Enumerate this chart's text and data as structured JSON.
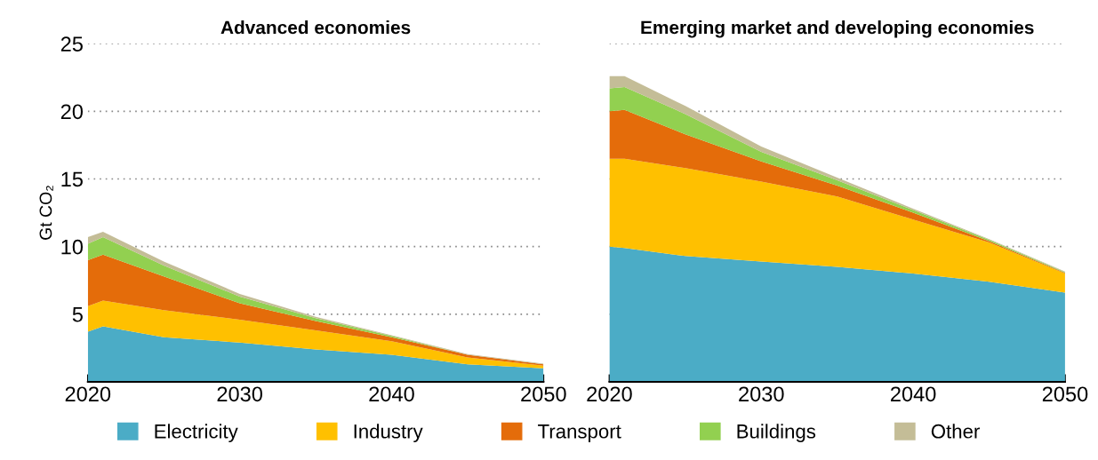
{
  "chart_data": [
    {
      "type": "area",
      "stacked": true,
      "title": "Advanced economies",
      "ylabel": "Gt CO₂",
      "x": [
        2020,
        2021,
        2025,
        2030,
        2035,
        2040,
        2045,
        2050
      ],
      "xlim": [
        2020,
        2050
      ],
      "xticks": [
        2020,
        2030,
        2040,
        2050
      ],
      "ylim": [
        0,
        25
      ],
      "yticks": [
        5,
        10,
        15,
        20,
        25
      ],
      "grid": "y",
      "legend": "bottom",
      "series": [
        {
          "name": "Electricity",
          "color": "#4bacc6",
          "values": [
            3.7,
            4.1,
            3.3,
            2.9,
            2.4,
            2.0,
            1.3,
            1.0
          ]
        },
        {
          "name": "Industry",
          "color": "#ffc000",
          "values": [
            1.9,
            1.9,
            2.0,
            1.7,
            1.4,
            1.0,
            0.5,
            0.2
          ]
        },
        {
          "name": "Transport",
          "color": "#e46c0a",
          "values": [
            3.4,
            3.4,
            2.5,
            1.2,
            0.7,
            0.3,
            0.2,
            0.1
          ]
        },
        {
          "name": "Buildings",
          "color": "#92d050",
          "values": [
            1.2,
            1.3,
            0.8,
            0.5,
            0.2,
            0.1,
            0.0,
            0.0
          ]
        },
        {
          "name": "Other",
          "color": "#c4bd97",
          "values": [
            0.5,
            0.4,
            0.3,
            0.2,
            0.1,
            0.05,
            0.05,
            0.05
          ]
        }
      ]
    },
    {
      "type": "area",
      "stacked": true,
      "title": "Emerging market and developing economies",
      "x": [
        2020,
        2021,
        2025,
        2030,
        2035,
        2040,
        2045,
        2050
      ],
      "xlim": [
        2020,
        2050
      ],
      "xticks": [
        2020,
        2030,
        2040,
        2050
      ],
      "ylim": [
        0,
        25
      ],
      "yticks": [
        5,
        10,
        15,
        20,
        25
      ],
      "grid": "y",
      "tick_labels": "x",
      "series": [
        {
          "color": "#4bacc6",
          "values": [
            10.0,
            9.9,
            9.3,
            8.9,
            8.5,
            8.0,
            7.4,
            6.6
          ]
        },
        {
          "color": "#ffc000",
          "values": [
            6.5,
            6.6,
            6.5,
            5.9,
            5.2,
            4.0,
            2.9,
            1.4
          ]
        },
        {
          "color": "#e46c0a",
          "values": [
            3.5,
            3.6,
            2.5,
            1.5,
            0.8,
            0.5,
            0.1,
            0.05
          ]
        },
        {
          "color": "#92d050",
          "values": [
            1.7,
            1.7,
            1.5,
            0.7,
            0.4,
            0.2,
            0.1,
            0.05
          ]
        },
        {
          "color": "#c4bd97",
          "values": [
            0.9,
            0.8,
            0.6,
            0.4,
            0.2,
            0.1,
            0.05,
            0.05
          ]
        }
      ]
    }
  ]
}
